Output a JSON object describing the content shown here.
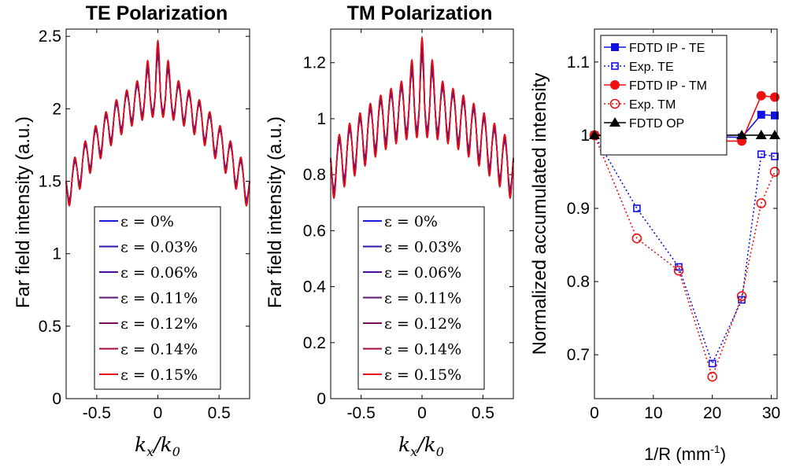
{
  "chart_data": [
    {
      "type": "line",
      "title": "TE Polarization",
      "ylabel": "Far field intensity (a.u.)",
      "xlabel": "k_x / k_0",
      "xlim": [
        -0.75,
        0.75
      ],
      "ylim": [
        0,
        2.55
      ],
      "xticks": [
        -0.5,
        0,
        0.5
      ],
      "xtick_labels": [
        "-0.5",
        "0",
        "0.5"
      ],
      "yticks": [
        0,
        0.5,
        1,
        1.5,
        2,
        2.5
      ],
      "ytick_labels": [
        "0",
        "0.5",
        "1",
        "1.5",
        "2",
        "2.5"
      ],
      "legend_position": "bottom-center",
      "curve_model": {
        "base_edge": 1.45,
        "base_center": 2.1,
        "ripple_amplitude": 0.12,
        "ripple_period": 0.085,
        "peak_extra": 0.25
      },
      "series": [
        {
          "name": "ε = 0%",
          "color": "#1a1adb",
          "ripple_scale": 0.7
        },
        {
          "name": "ε = 0.03%",
          "color": "#2a14a8",
          "ripple_scale": 0.75
        },
        {
          "name": "ε = 0.06%",
          "color": "#4a1096",
          "ripple_scale": 0.8
        },
        {
          "name": "ε = 0.11%",
          "color": "#5e0f78",
          "ripple_scale": 0.85
        },
        {
          "name": "ε = 0.12%",
          "color": "#7a0c5a",
          "ripple_scale": 0.9
        },
        {
          "name": "ε = 0.14%",
          "color": "#a00a3a",
          "ripple_scale": 0.95
        },
        {
          "name": "ε = 0.15%",
          "color": "#e0101a",
          "ripple_scale": 1.0
        }
      ]
    },
    {
      "type": "line",
      "title": "TM Polarization",
      "ylabel": "Far field intensity (a.u.)",
      "xlabel": "k_x / k_0",
      "xlim": [
        -0.75,
        0.75
      ],
      "ylim": [
        0,
        1.32
      ],
      "xticks": [
        -0.5,
        0,
        0.5
      ],
      "xtick_labels": [
        "-0.5",
        "0",
        "0.5"
      ],
      "yticks": [
        0,
        0.2,
        0.4,
        0.6,
        0.8,
        1,
        1.2
      ],
      "ytick_labels": [
        "0",
        "0.2",
        "0.4",
        "0.6",
        "0.8",
        "1",
        "1.2"
      ],
      "legend_position": "bottom-center",
      "curve_model": {
        "base_edge": 0.82,
        "base_center": 1.05,
        "ripple_amplitude": 0.09,
        "ripple_period": 0.085,
        "peak_extra": 0.15
      },
      "series": [
        {
          "name": "ε = 0%",
          "color": "#1a1adb",
          "ripple_scale": 0.7
        },
        {
          "name": "ε = 0.03%",
          "color": "#2a14a8",
          "ripple_scale": 0.75
        },
        {
          "name": "ε = 0.06%",
          "color": "#4a1096",
          "ripple_scale": 0.8
        },
        {
          "name": "ε = 0.11%",
          "color": "#5e0f78",
          "ripple_scale": 0.85
        },
        {
          "name": "ε = 0.12%",
          "color": "#7a0c5a",
          "ripple_scale": 0.9
        },
        {
          "name": "ε = 0.14%",
          "color": "#a00a3a",
          "ripple_scale": 0.95
        },
        {
          "name": "ε = 0.15%",
          "color": "#e0101a",
          "ripple_scale": 1.0
        }
      ]
    },
    {
      "type": "line",
      "title": "",
      "ylabel": "Normalized accumulated intensity",
      "xlabel": "1/R (mm",
      "xlabel_sup": "-1",
      "xlabel_end": ")",
      "xlim": [
        0,
        31
      ],
      "ylim": [
        0.64,
        1.145
      ],
      "xticks": [
        0,
        10,
        20,
        30
      ],
      "xtick_labels": [
        "0",
        "10",
        "20",
        "30"
      ],
      "yticks": [
        0.7,
        0.8,
        0.9,
        1,
        1.1
      ],
      "ytick_labels": [
        "0.7",
        "0.8",
        "0.9",
        "1",
        "1.1"
      ],
      "legend_position": "top-right",
      "series": [
        {
          "name": "FDTD IP - TE",
          "color": "#1010e0",
          "style": "solid",
          "marker": "square-filled",
          "x": [
            0,
            7.2,
            14.3,
            20,
            25,
            28.3,
            30.6
          ],
          "y": [
            1.0,
            0.998,
            0.997,
            0.998,
            0.997,
            1.028,
            1.027
          ]
        },
        {
          "name": "Exp. TE",
          "color": "#1010e0",
          "style": "dotted",
          "marker": "square-open",
          "x": [
            0,
            7.2,
            14.3,
            20,
            25,
            28.3,
            30.6
          ],
          "y": [
            1.0,
            0.9,
            0.82,
            0.688,
            0.775,
            0.974,
            0.971
          ]
        },
        {
          "name": "FDTD IP - TM",
          "color": "#ee1111",
          "style": "solid",
          "marker": "circle-filled",
          "x": [
            0,
            7.2,
            14.3,
            20,
            25,
            28.3,
            30.6
          ],
          "y": [
            1.0,
            0.995,
            0.988,
            0.992,
            0.992,
            1.054,
            1.052
          ]
        },
        {
          "name": "Exp. TM",
          "color": "#ee1111",
          "style": "dotted",
          "marker": "circle-open",
          "x": [
            0,
            7.2,
            14.3,
            20,
            25,
            28.3,
            30.6
          ],
          "y": [
            1.0,
            0.859,
            0.815,
            0.67,
            0.78,
            0.907,
            0.95
          ]
        },
        {
          "name": "FDTD OP",
          "color": "#000000",
          "style": "solid",
          "marker": "triangle-filled",
          "x": [
            0,
            7.2,
            14.3,
            20,
            25,
            28.3,
            30.6
          ],
          "y": [
            1.0,
            1.0,
            1.0,
            1.0,
            1.0,
            1.0,
            1.0
          ]
        }
      ]
    }
  ]
}
